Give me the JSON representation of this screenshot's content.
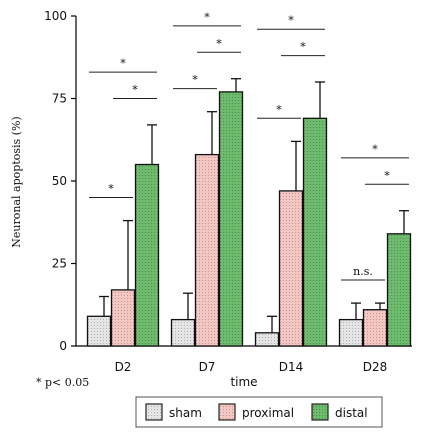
{
  "chart_data": {
    "type": "bar",
    "xlabel": "time",
    "ylabel": "Neuronal apoptosis (%)",
    "ylim": [
      0,
      100
    ],
    "yticks": [
      0,
      25,
      50,
      75,
      100
    ],
    "categories": [
      "D2",
      "D7",
      "D14",
      "D28"
    ],
    "series": [
      {
        "name": "sham",
        "values": [
          9,
          8,
          4,
          8
        ],
        "errors": [
          6,
          8,
          5,
          5
        ],
        "color": "#e5e5e5",
        "hatch": "dots"
      },
      {
        "name": "proximal",
        "values": [
          17,
          58,
          47,
          11
        ],
        "errors": [
          21,
          13,
          15,
          2
        ],
        "color": "#f4c7c3",
        "hatch": "dots"
      },
      {
        "name": "distal",
        "values": [
          55,
          77,
          69,
          34
        ],
        "errors": [
          12,
          4,
          11,
          7
        ],
        "color": "#6dbb6d",
        "hatch": "dots"
      }
    ],
    "annotations": {
      "D2": [
        {
          "label": "*",
          "from": 0,
          "to": 1
        },
        {
          "label": "*",
          "from": 1,
          "to": 2
        },
        {
          "label": "*",
          "from": 0,
          "to": 2
        }
      ],
      "D7": [
        {
          "label": "*",
          "from": 0,
          "to": 1
        },
        {
          "label": "*",
          "from": 1,
          "to": 2
        },
        {
          "label": "*",
          "from": 0,
          "to": 2
        }
      ],
      "D14": [
        {
          "label": "*",
          "from": 0,
          "to": 1
        },
        {
          "label": "*",
          "from": 1,
          "to": 2
        },
        {
          "label": "*",
          "from": 0,
          "to": 2
        }
      ],
      "D28": [
        {
          "label": "n.s.",
          "from": 0,
          "to": 1
        },
        {
          "label": "*",
          "from": 1,
          "to": 2
        },
        {
          "label": "*",
          "from": 0,
          "to": 2
        }
      ]
    },
    "footnote": "* p< 0.05",
    "legend_position": "bottom"
  }
}
